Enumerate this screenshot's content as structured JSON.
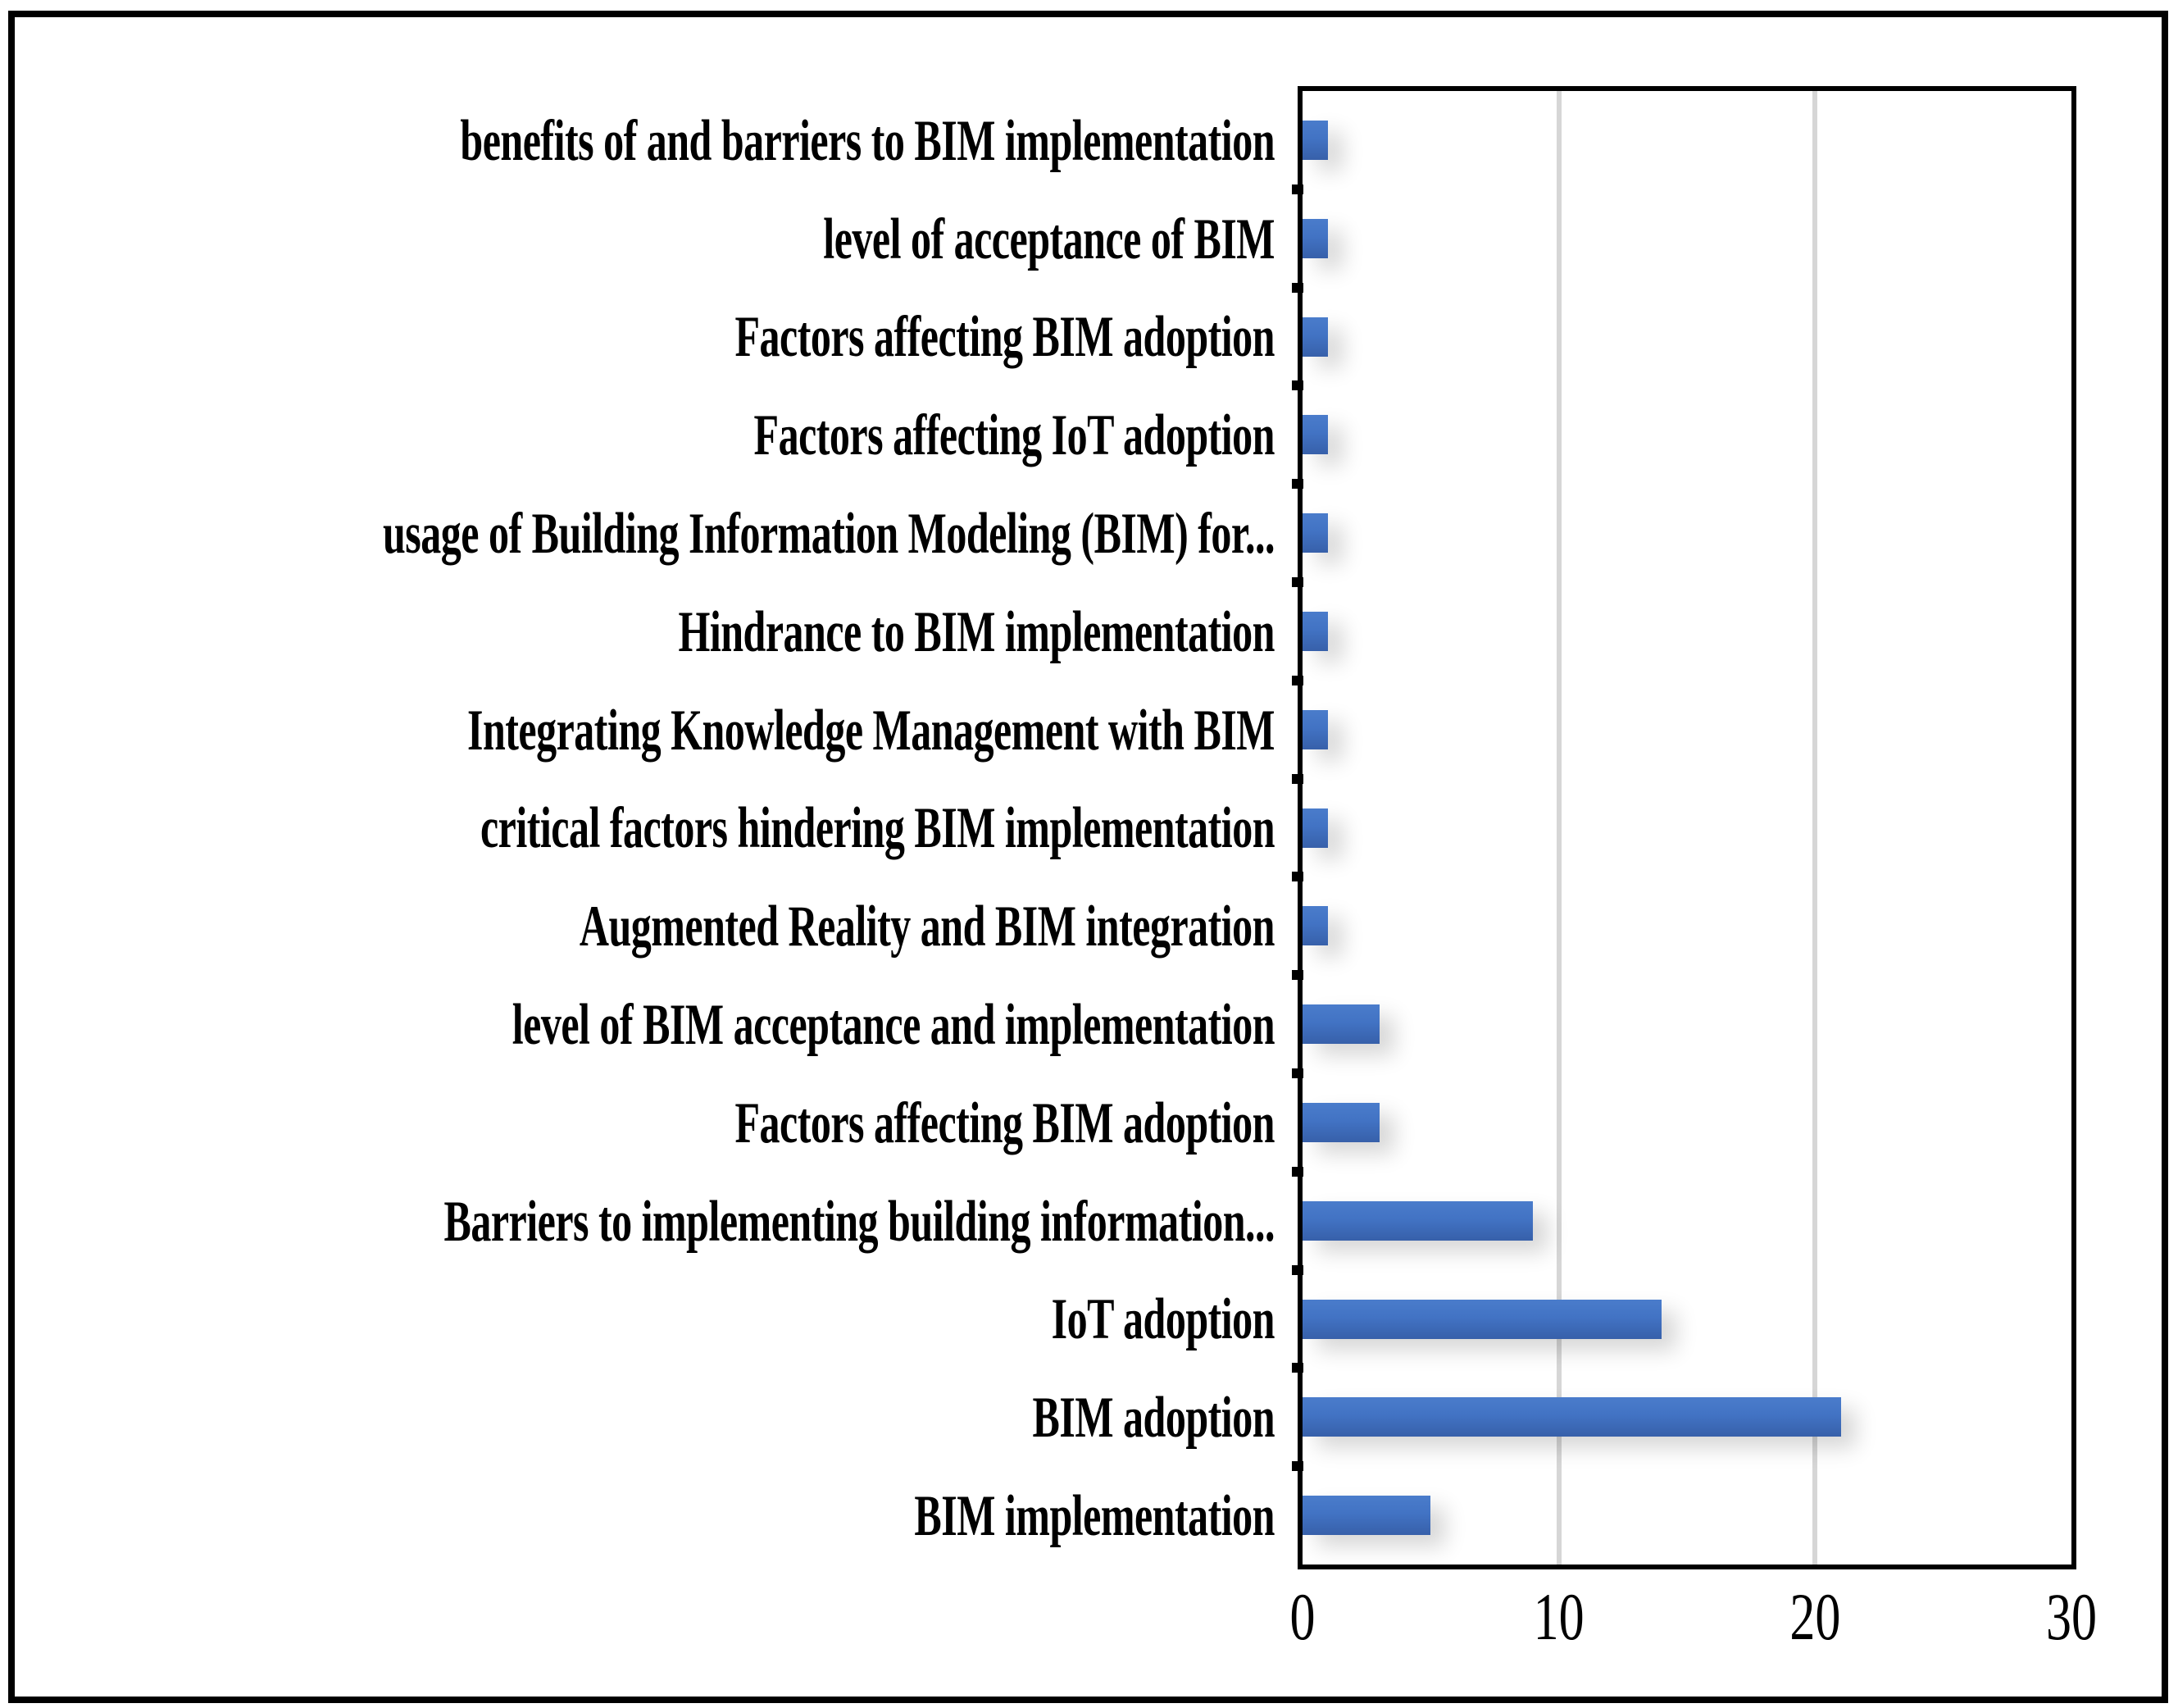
{
  "chart_data": {
    "type": "bar",
    "orientation": "horizontal",
    "title": "",
    "xlabel": "",
    "ylabel": "",
    "categories": [
      "benefits of and barriers to BIM implementation",
      "level of acceptance of BIM",
      "Factors affecting BIM adoption",
      "Factors affecting IoT adoption",
      "usage of Building Information Modeling (BIM) for...",
      "Hindrance to BIM implementation",
      "Integrating Knowledge Management with BIM",
      "critical factors hindering BIM implementation",
      "Augmented Reality and BIM integration",
      "level of BIM acceptance and implementation",
      "Factors affecting BIM adoption",
      "Barriers to implementing building information...",
      "IoT adoption",
      "BIM adoption",
      "BIM implementation"
    ],
    "values": [
      1,
      1,
      1,
      1,
      1,
      1,
      1,
      1,
      1,
      3,
      3,
      9,
      14,
      21,
      5
    ],
    "xlim": [
      0,
      30
    ],
    "x_ticks": [
      "0",
      "10",
      "20",
      "30"
    ],
    "x_tick_values": [
      0,
      10,
      20,
      30
    ],
    "grid": "vertical-major-on",
    "legend": "none",
    "colors": {
      "bar_gradient_top": "#4A7CCB",
      "bar_gradient_bottom": "#3760AA",
      "gridline": "#D6D6D6",
      "axis_and_frame": "#000000",
      "background": "#FFFFFF"
    }
  }
}
